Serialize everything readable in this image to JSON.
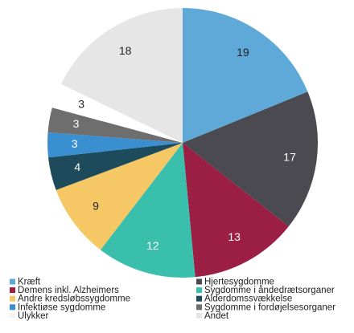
{
  "chart_data": {
    "type": "pie",
    "categories": [
      "Kræft",
      "Hjertesygdomme",
      "Demens inkl. Alzheimers",
      "Sygdomme i åndedrætsorganer",
      "Andre kredsløbssygdomme",
      "Alderdomssvækkelse",
      "Infektiøse sygdomme",
      "Sygdomme i fordøjelsesorganer",
      "Ulykker",
      "Andet"
    ],
    "values": [
      19,
      17,
      13,
      12,
      9,
      4,
      3,
      3,
      3,
      18
    ],
    "colors": [
      "#5ea9d8",
      "#4a4a50",
      "#9b1f45",
      "#3bbfad",
      "#f5c865",
      "#1d4b5c",
      "#3a8fd1",
      "#6e6e6e",
      "#ffffff",
      "#e6e6e6"
    ],
    "legend": "bottom"
  }
}
